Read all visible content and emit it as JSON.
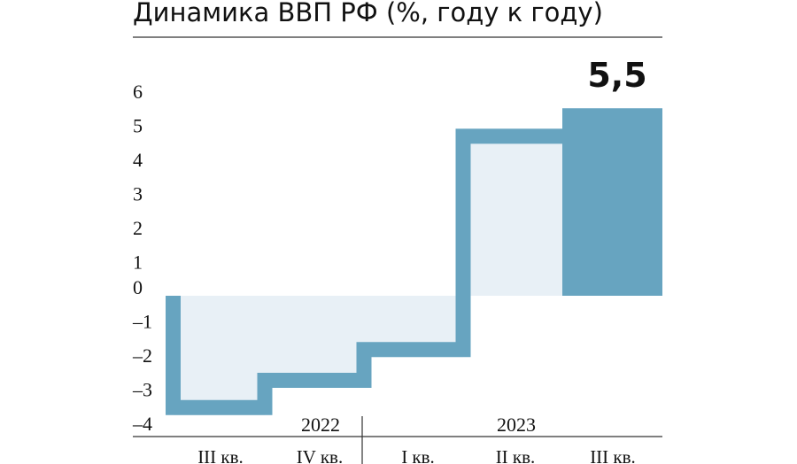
{
  "chart_data": {
    "type": "bar",
    "title": "Динамика ВВП РФ (%, году к году)",
    "xlabel": "",
    "ylabel": "",
    "ylim": [
      -4,
      6
    ],
    "yticks": [
      "6",
      "5",
      "4",
      "3",
      "2",
      "1",
      "0",
      "–1",
      "–2",
      "–3",
      "–4"
    ],
    "ytick_values": [
      6,
      5,
      4,
      3,
      2,
      1,
      0,
      -1,
      -2,
      -3,
      -4
    ],
    "categories": [
      "III кв.",
      "IV кв.",
      "I кв.",
      "II кв.",
      "III кв."
    ],
    "years": [
      {
        "label": "2022",
        "from": 0,
        "to": 1
      },
      {
        "label": "2023",
        "from": 2,
        "to": 4
      }
    ],
    "values": [
      -3.5,
      -2.7,
      -1.8,
      4.9,
      5.5
    ],
    "value_label": "5,5",
    "highlight_index": 4,
    "colors": {
      "accent": "#67a4c0",
      "fill": "#e8f0f6",
      "text": "#111111",
      "rule": "#333333"
    }
  }
}
